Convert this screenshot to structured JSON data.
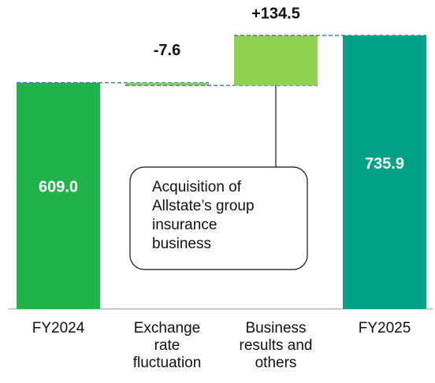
{
  "chart_data": {
    "type": "waterfall",
    "categories": [
      "FY2024",
      "Exchange rate fluctuation",
      "Business results and others",
      "FY2025"
    ],
    "values": [
      609.0,
      -7.6,
      134.5,
      735.9
    ],
    "value_labels": [
      "609.0",
      "-7.6",
      "+134.5",
      "735.9"
    ],
    "colors": [
      "#21b24b",
      "#92d050",
      "#92d050",
      "#00a184"
    ],
    "annotation": "Acquisition of Allstate’s group insurance business"
  }
}
